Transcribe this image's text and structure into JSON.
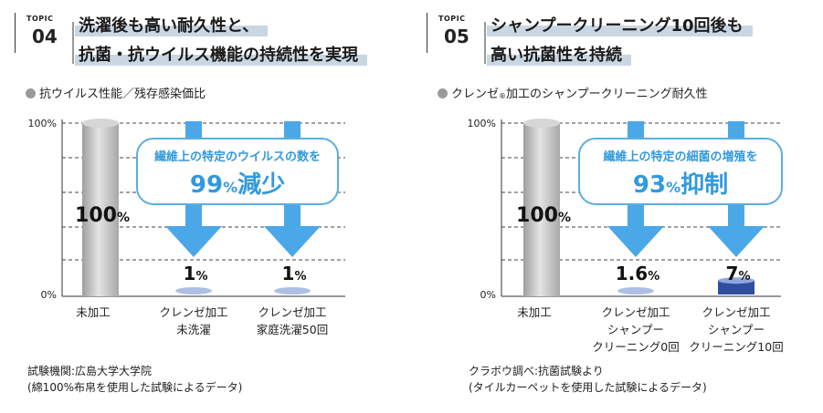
{
  "panels": [
    {
      "topic_word": "TOPIC",
      "topic_number": "04",
      "heading_lines": [
        "洗濯後も高い耐久性と、",
        "抗菌・抗ウイルス機能の持続性を実現"
      ],
      "subtitle": "抗ウイルス性能／残存感染価比",
      "callout_text": "繊維上の特定のウイルスの数を",
      "callout_big": "99",
      "callout_pct": "%",
      "callout_word": "減少",
      "notes": [
        "試験機関:広島大学大学院",
        "(綿100%布帛を使用した試験によるデータ)"
      ]
    },
    {
      "topic_word": "TOPIC",
      "topic_number": "05",
      "heading_lines": [
        "シャンプークリーニング10回後も",
        "高い抗菌性を持続"
      ],
      "subtitle_pre": "クレンゼ",
      "subtitle_reg": "®",
      "subtitle_post": "加工のシャンプークリーニング耐久性",
      "callout_text": "繊維上の特定の細菌の増殖を",
      "callout_big": "93",
      "callout_pct": "%",
      "callout_word": "抑制",
      "notes": [
        "クラボウ調べ:抗菌試験より",
        "(タイルカーペットを使用した試験によるデータ)"
      ]
    }
  ],
  "chart_data": [
    {
      "type": "bar",
      "categories": [
        [
          "未加工"
        ],
        [
          "クレンゼ加工",
          "未洗濯"
        ],
        [
          "クレンゼ加工",
          "家庭洗濯50回"
        ]
      ],
      "values": [
        100,
        1,
        1
      ],
      "value_labels": [
        {
          "num": "100",
          "unit": "%"
        },
        {
          "num": "1",
          "unit": "%"
        },
        {
          "num": "1",
          "unit": "%"
        }
      ],
      "ytick_labels": [
        "100%",
        "0%"
      ],
      "ylim": [
        0,
        100
      ],
      "grid": true,
      "colors": {
        "bar": "#bdbdbd",
        "disc": "#aebfe6",
        "arrow": "#4aa8e8",
        "callout_border": "#5aaee0",
        "callout_text": "#3399dd"
      }
    },
    {
      "type": "bar",
      "categories": [
        [
          "未加工"
        ],
        [
          "クレンゼ加工",
          "シャンプー",
          "クリーニング0回"
        ],
        [
          "クレンゼ加工",
          "シャンプー",
          "クリーニング10回"
        ]
      ],
      "values": [
        100,
        1.6,
        7
      ],
      "value_labels": [
        {
          "num": "100",
          "unit": "%"
        },
        {
          "num": "1.6",
          "unit": "%"
        },
        {
          "num": "7",
          "unit": "%"
        }
      ],
      "ytick_labels": [
        "100%",
        "0%"
      ],
      "ylim": [
        0,
        100
      ],
      "grid": true,
      "colors": {
        "bar": "#bdbdbd",
        "disc": "#aebfe6",
        "disc_dark": "#2f4f9e",
        "arrow": "#4aa8e8",
        "callout_border": "#5aaee0",
        "callout_text": "#3399dd"
      }
    }
  ]
}
